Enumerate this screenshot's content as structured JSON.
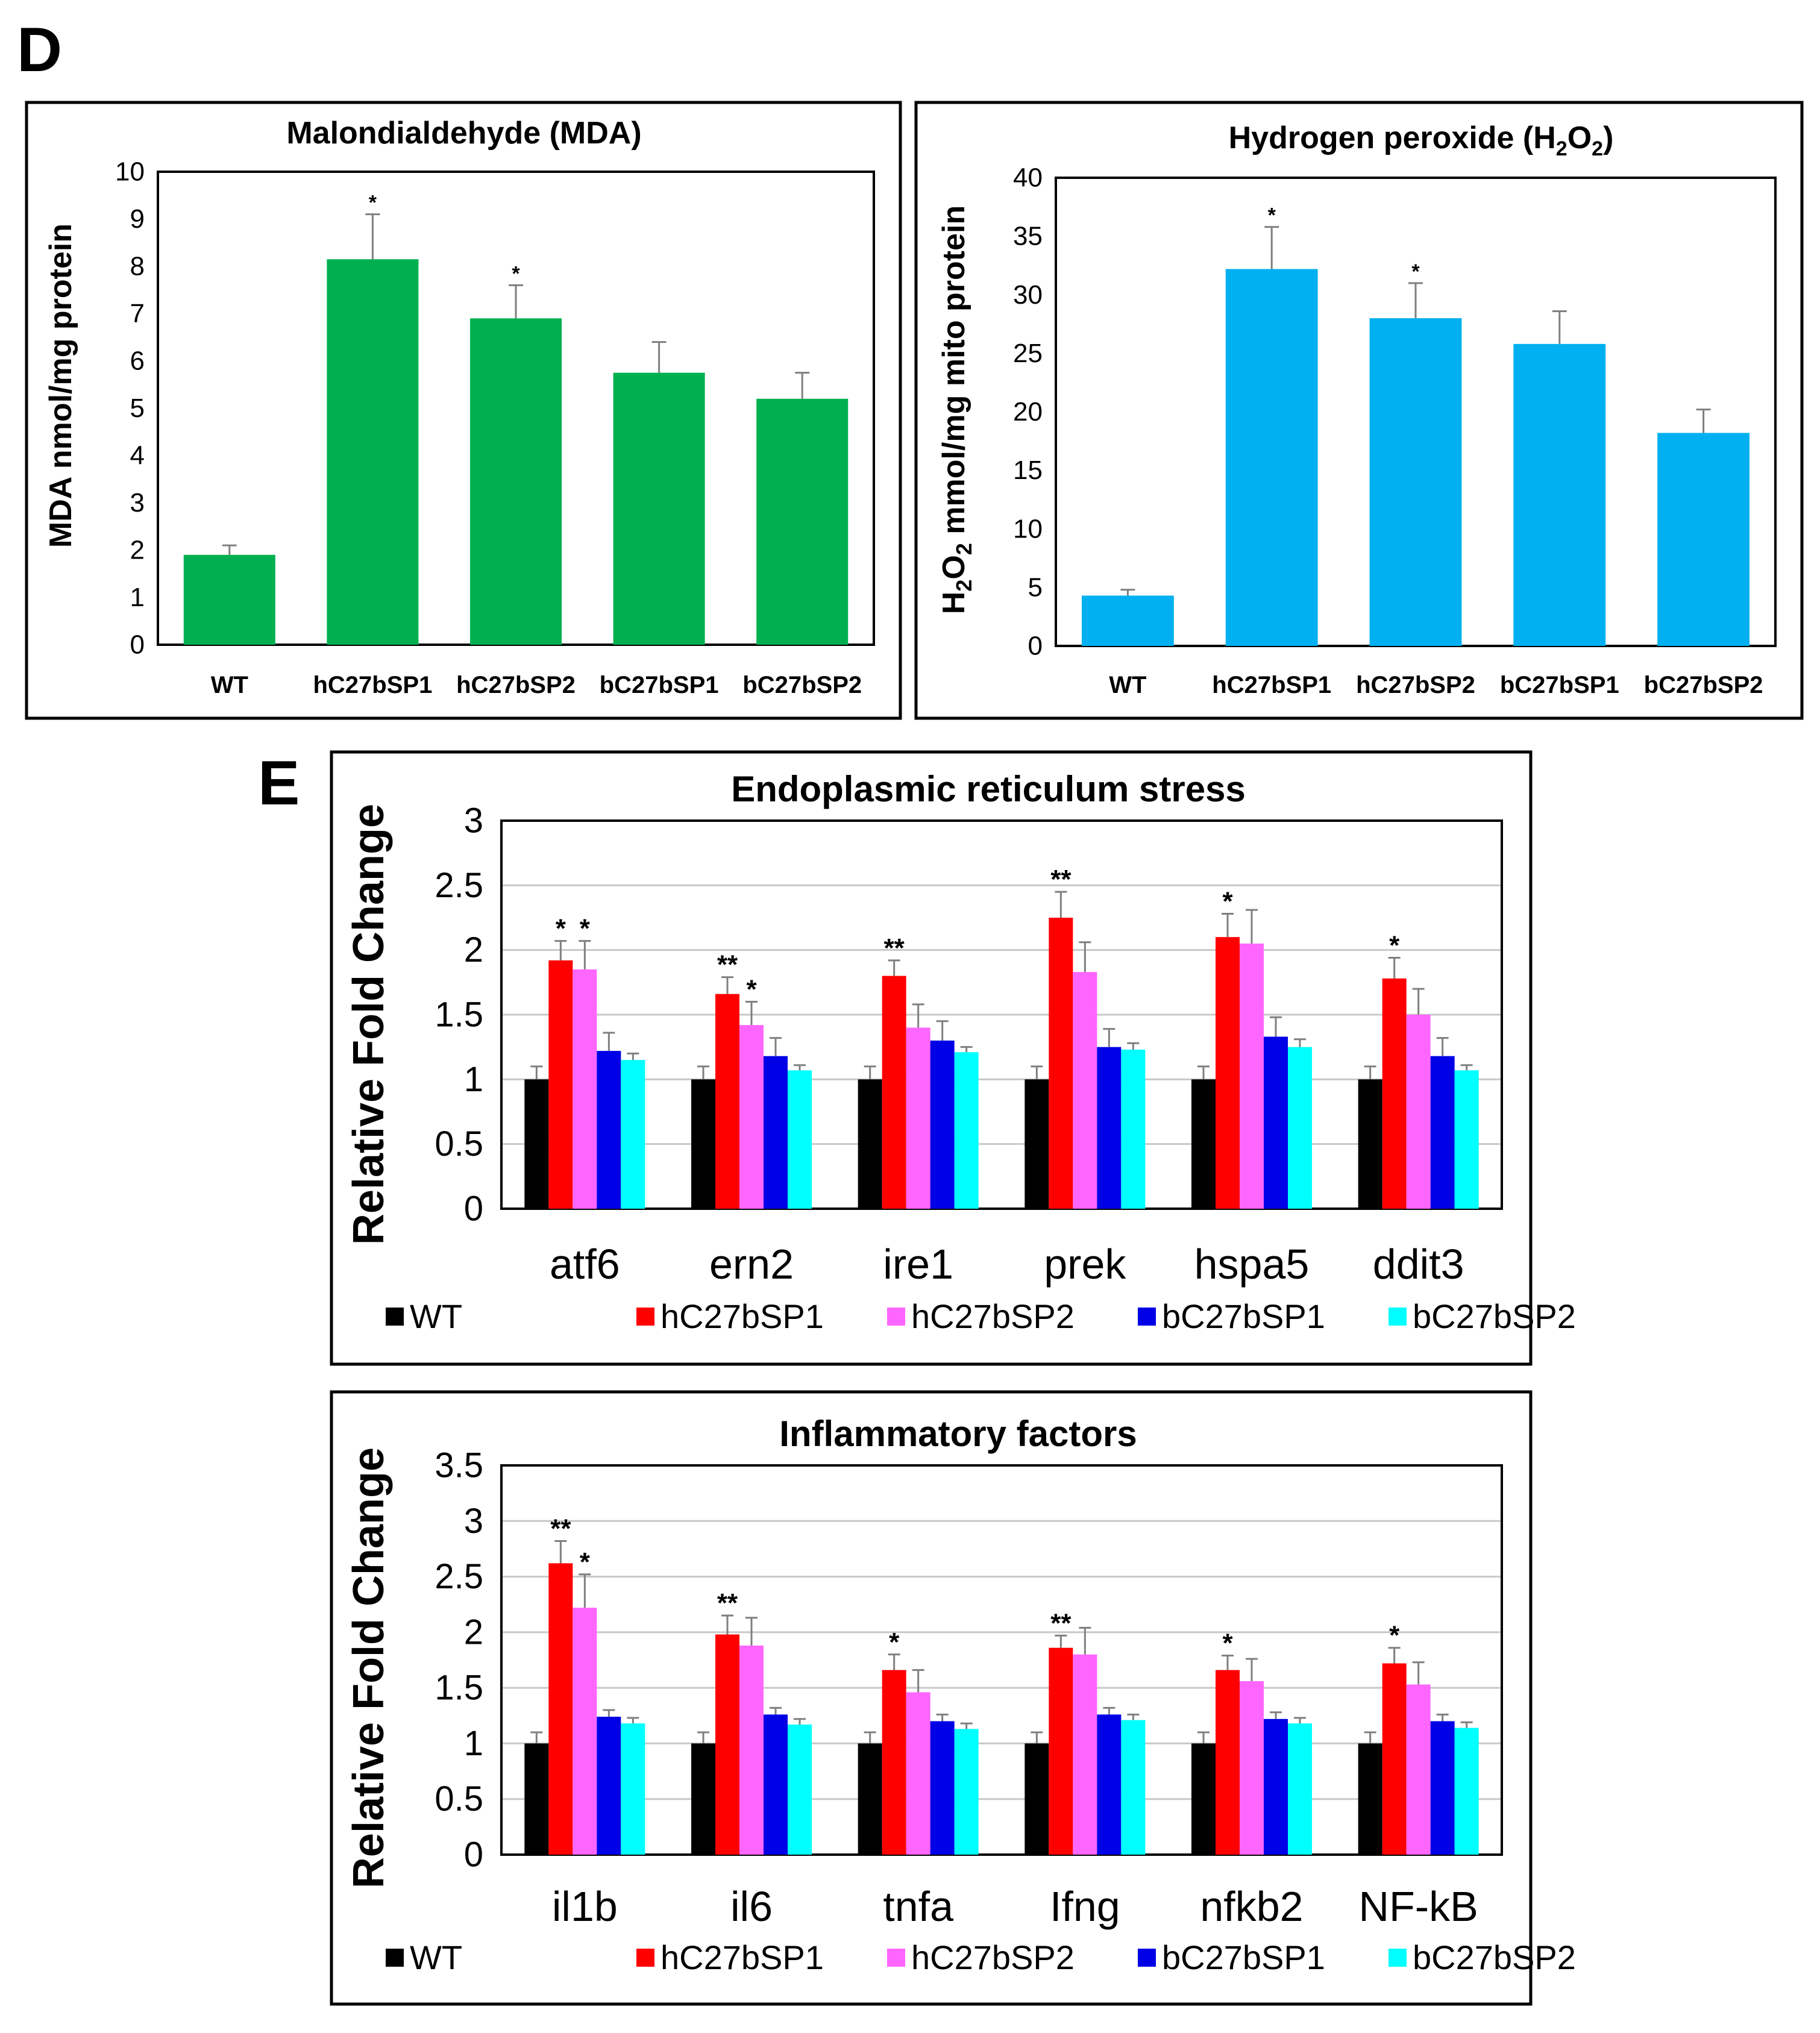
{
  "figure": {
    "panel_d_label": "D",
    "panel_e_label": "E"
  },
  "colors": {
    "WT": "#000000",
    "hC27bSP1": "#ff0000",
    "hC27bSP2": "#ff66ff",
    "bC27bSP1": "#0000e6",
    "bC27bSP2": "#00ffff",
    "mda_bar": "#00b050",
    "h2o2_bar": "#00b0f0"
  },
  "chart_data": [
    {
      "id": "mda",
      "type": "bar",
      "title": "Malondialdehyde (MDA)",
      "ylabel": "MDA nmol/mg protein",
      "categories": [
        "WT",
        "hC27bSP1",
        "hC27bSP2",
        "bC27bSP1",
        "bC27bSP2"
      ],
      "values": [
        1.9,
        8.15,
        6.9,
        5.75,
        5.2
      ],
      "errors": [
        0.2,
        0.95,
        0.7,
        0.65,
        0.55
      ],
      "significance": [
        "",
        "*",
        "*",
        "",
        ""
      ],
      "ylim": [
        0,
        10
      ],
      "yticks": [
        "0",
        "1",
        "2",
        "3",
        "4",
        "5",
        "6",
        "7",
        "8",
        "9",
        "10"
      ],
      "color_key": "mda_bar"
    },
    {
      "id": "h2o2",
      "type": "bar",
      "title": "Hydrogen peroxide (H2O2)",
      "ylabel": "H2O2 mmol/mg mito protein",
      "categories": [
        "WT",
        "hC27bSP1",
        "hC27bSP2",
        "bC27bSP1",
        "bC27bSP2"
      ],
      "values": [
        4.3,
        32.2,
        28.0,
        25.8,
        18.2
      ],
      "errors": [
        0.5,
        3.6,
        3.0,
        2.8,
        2.0
      ],
      "significance": [
        "",
        "*",
        "*",
        "",
        ""
      ],
      "ylim": [
        0,
        40
      ],
      "yticks": [
        "0",
        "5",
        "10",
        "15",
        "20",
        "25",
        "30",
        "35",
        "40"
      ],
      "color_key": "h2o2_bar"
    },
    {
      "id": "er",
      "type": "bar",
      "title": "Endoplasmic reticulum stress",
      "ylabel": "Relative Fold Change",
      "categories": [
        "atf6",
        "ern2",
        "ire1",
        "prek",
        "hspa5",
        "ddit3"
      ],
      "ylim": [
        0,
        3
      ],
      "yticks": [
        "0",
        "0.5",
        "1",
        "1.5",
        "2",
        "2.5",
        "3"
      ],
      "legend": [
        "WT",
        "hC27bSP1",
        "hC27bSP2",
        "bC27bSP1",
        "bC27bSP2"
      ],
      "series": [
        {
          "name": "WT",
          "values": [
            1,
            1,
            1,
            1,
            1,
            1
          ],
          "errors": [
            0.1,
            0.1,
            0.1,
            0.1,
            0.1,
            0.1
          ],
          "sig": [
            "",
            "",
            "",
            "",
            "",
            ""
          ]
        },
        {
          "name": "hC27bSP1",
          "values": [
            1.92,
            1.66,
            1.8,
            2.25,
            2.1,
            1.78
          ],
          "errors": [
            0.15,
            0.13,
            0.12,
            0.2,
            0.18,
            0.16
          ],
          "sig": [
            "*",
            "**",
            "**",
            "**",
            "*",
            "*"
          ]
        },
        {
          "name": "hC27bSP2",
          "values": [
            1.85,
            1.42,
            1.4,
            1.83,
            2.05,
            1.5
          ],
          "errors": [
            0.22,
            0.18,
            0.18,
            0.23,
            0.26,
            0.2
          ],
          "sig": [
            "*",
            "*",
            "",
            "",
            "",
            ""
          ]
        },
        {
          "name": "bC27bSP1",
          "values": [
            1.22,
            1.18,
            1.3,
            1.25,
            1.33,
            1.18
          ],
          "errors": [
            0.14,
            0.14,
            0.15,
            0.14,
            0.15,
            0.14
          ],
          "sig": [
            "",
            "",
            "",
            "",
            "",
            ""
          ]
        },
        {
          "name": "bC27bSP2",
          "values": [
            1.15,
            1.07,
            1.21,
            1.23,
            1.25,
            1.07
          ],
          "errors": [
            0.05,
            0.04,
            0.04,
            0.05,
            0.06,
            0.04
          ],
          "sig": [
            "",
            "",
            "",
            "",
            "",
            ""
          ]
        }
      ]
    },
    {
      "id": "inflam",
      "type": "bar",
      "title": "Inflammatory factors",
      "ylabel": "Relative Fold Change",
      "categories": [
        "il1b",
        "il6",
        "tnfa",
        "Ifng",
        "nfkb2",
        "NF-kB"
      ],
      "ylim": [
        0,
        3.5
      ],
      "yticks": [
        "0",
        "0.5",
        "1",
        "1.5",
        "2",
        "2.5",
        "3",
        "3.5"
      ],
      "legend": [
        "WT",
        "hC27bSP1",
        "hC27bSP2",
        "bC27bSP1",
        "bC27bSP2"
      ],
      "series": [
        {
          "name": "WT",
          "values": [
            1,
            1,
            1,
            1,
            1,
            1
          ],
          "errors": [
            0.1,
            0.1,
            0.1,
            0.1,
            0.1,
            0.1
          ],
          "sig": [
            "",
            "",
            "",
            "",
            "",
            ""
          ]
        },
        {
          "name": "hC27bSP1",
          "values": [
            2.62,
            1.98,
            1.66,
            1.86,
            1.66,
            1.72
          ],
          "errors": [
            0.2,
            0.17,
            0.14,
            0.11,
            0.13,
            0.14
          ],
          "sig": [
            "**",
            "**",
            "*",
            "**",
            "*",
            "*"
          ]
        },
        {
          "name": "hC27bSP2",
          "values": [
            2.22,
            1.88,
            1.46,
            1.8,
            1.56,
            1.53
          ],
          "errors": [
            0.3,
            0.25,
            0.2,
            0.24,
            0.2,
            0.2
          ],
          "sig": [
            "*",
            "",
            "",
            "",
            "",
            ""
          ]
        },
        {
          "name": "bC27bSP1",
          "values": [
            1.24,
            1.26,
            1.2,
            1.26,
            1.22,
            1.2
          ],
          "errors": [
            0.06,
            0.06,
            0.06,
            0.06,
            0.06,
            0.06
          ],
          "sig": [
            "",
            "",
            "",
            "",
            "",
            ""
          ]
        },
        {
          "name": "bC27bSP2",
          "values": [
            1.18,
            1.17,
            1.13,
            1.21,
            1.18,
            1.14
          ],
          "errors": [
            0.05,
            0.05,
            0.05,
            0.05,
            0.05,
            0.05
          ],
          "sig": [
            "",
            "",
            "",
            "",
            "",
            ""
          ]
        }
      ]
    }
  ]
}
